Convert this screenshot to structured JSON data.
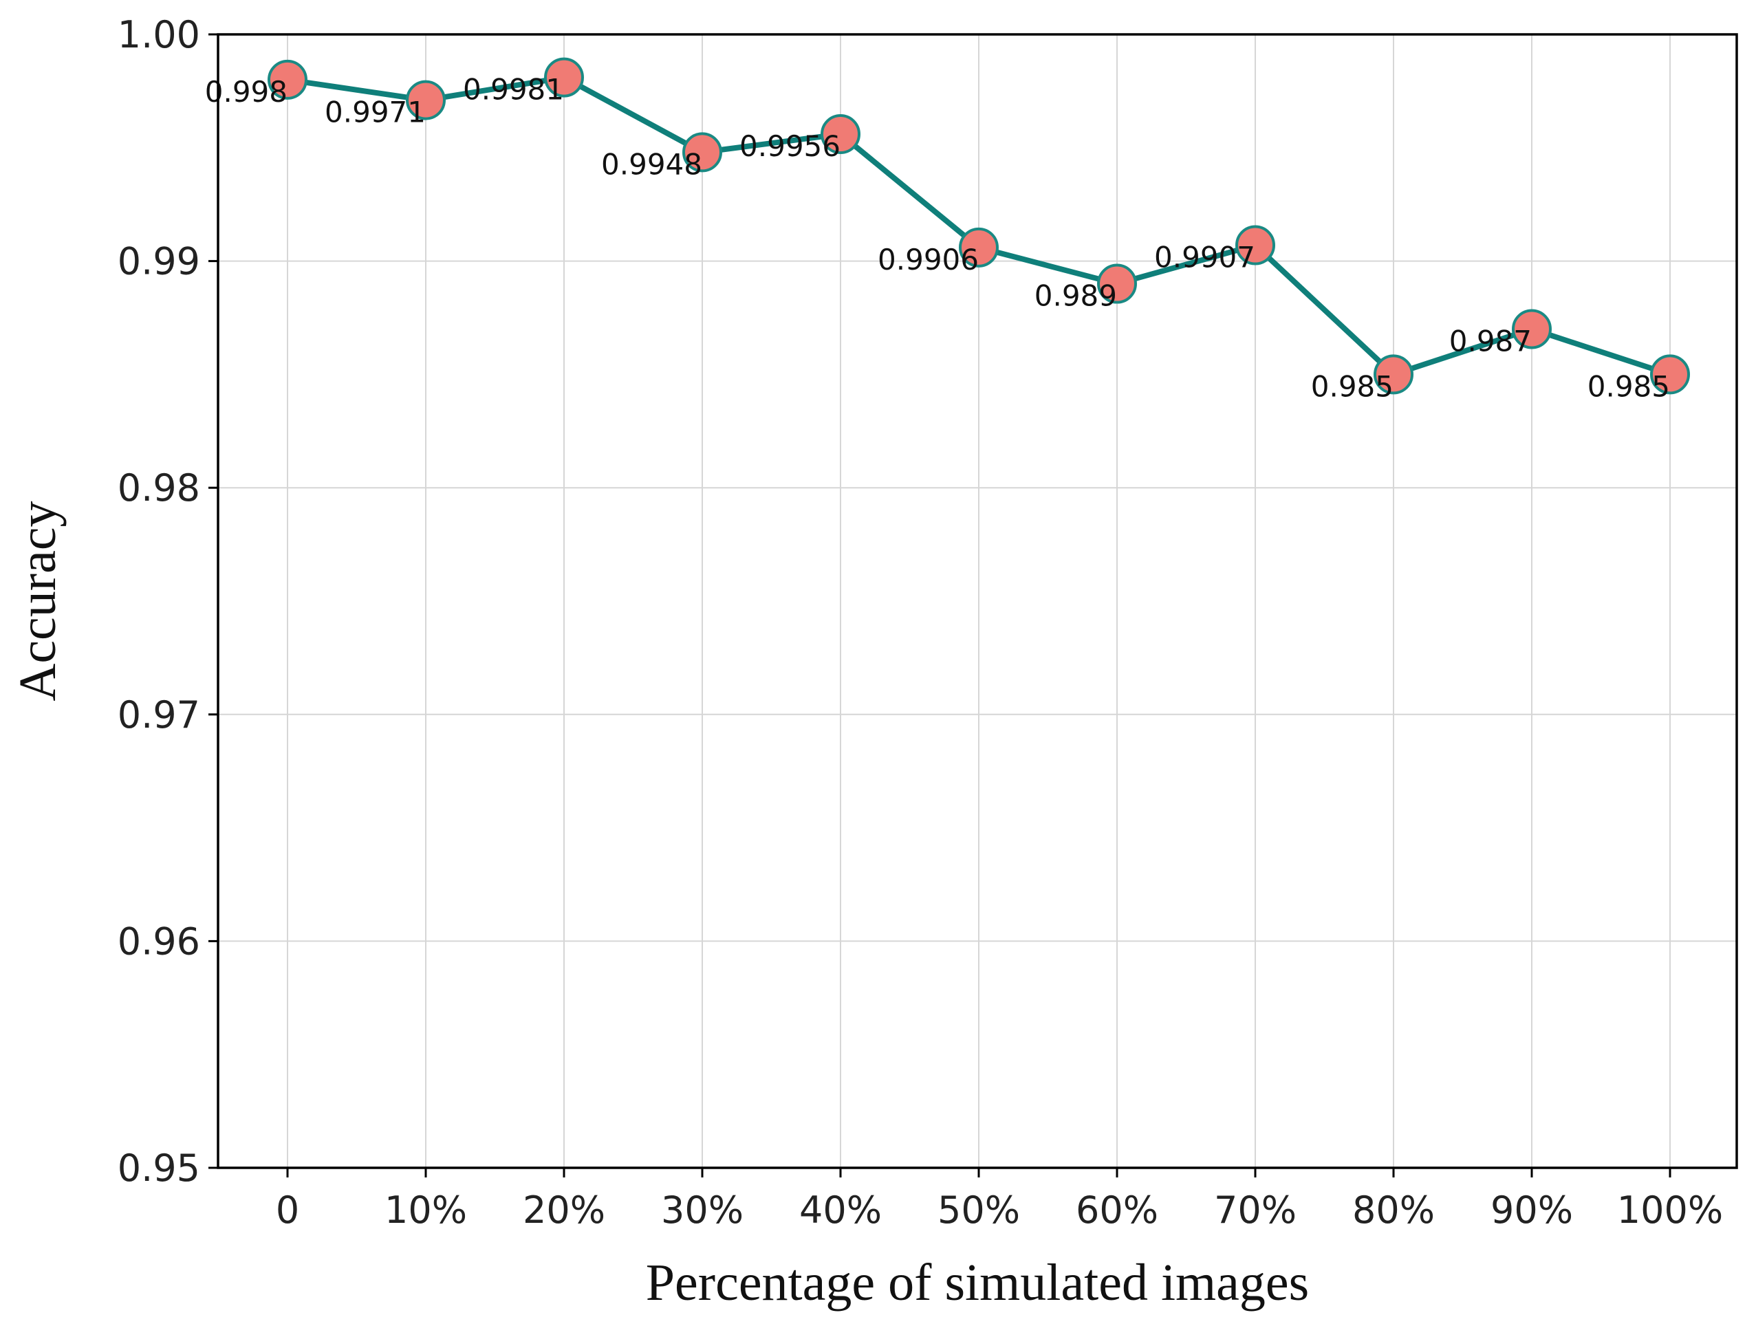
{
  "chart_data": {
    "type": "line",
    "title": "",
    "xlabel": "Percentage of simulated images",
    "ylabel": "Accuracy",
    "categories": [
      "0",
      "10%",
      "20%",
      "30%",
      "40%",
      "50%",
      "60%",
      "70%",
      "80%",
      "90%",
      "100%"
    ],
    "series": [
      {
        "values": [
          0.998,
          0.9971,
          0.9981,
          0.9948,
          0.9956,
          0.9906,
          0.989,
          0.9907,
          0.985,
          0.987,
          0.985
        ],
        "labels": [
          "0.998",
          "0.9971",
          "0.9981",
          "0.9948",
          "0.9956",
          "0.9906",
          "0.989",
          "0.9907",
          "0.985",
          "0.987",
          "0.985"
        ]
      }
    ],
    "ylim": [
      0.95,
      1.0
    ],
    "yticks": [
      "0.95",
      "0.96",
      "0.97",
      "0.98",
      "0.99",
      "1.00"
    ],
    "grid": true,
    "line_color": "#0f7f7a",
    "marker_fill": "#f07b74",
    "marker_edge": "#1a8a84"
  }
}
